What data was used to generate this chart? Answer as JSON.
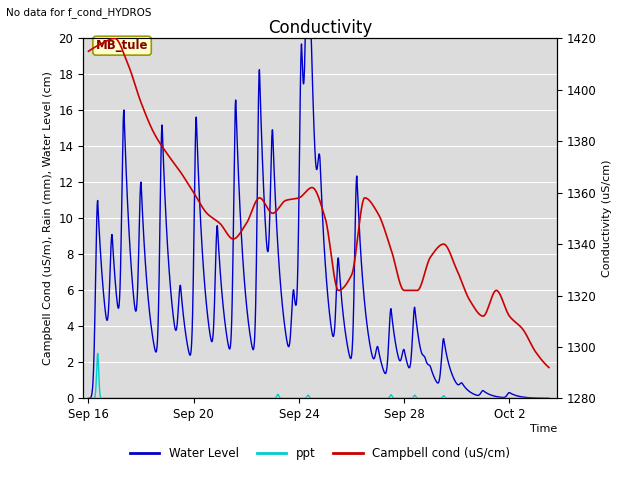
{
  "title": "Conductivity",
  "top_left_text": "No data for f_cond_HYDROS",
  "annotation_label": "MB_tule",
  "xlabel": "Time",
  "ylabel_left": "Campbell Cond (uS/m), Rain (mm), Water Level (cm)",
  "ylabel_right": "Conductivity (uS/cm)",
  "ylim_left": [
    0,
    20
  ],
  "ylim_right": [
    1280,
    1420
  ],
  "yticks_left": [
    0,
    2,
    4,
    6,
    8,
    10,
    12,
    14,
    16,
    18,
    20
  ],
  "yticks_right": [
    1280,
    1300,
    1320,
    1340,
    1360,
    1380,
    1400,
    1420
  ],
  "xtick_labels": [
    "Sep 16",
    "Sep 20",
    "Sep 24",
    "Sep 28",
    "Oct 2"
  ],
  "xtick_positions": [
    0,
    4,
    8,
    12,
    16
  ],
  "xlim": [
    -0.2,
    17.8
  ],
  "bg_color": "#dcdcdc",
  "plot_bg_color": "#dcdcdc",
  "water_level_color": "#0000cc",
  "ppt_color": "#00cccc",
  "campbell_cond_color": "#cc0000",
  "legend_entries": [
    "Water Level",
    "ppt",
    "Campbell cond (uS/cm)"
  ],
  "title_fontsize": 12,
  "label_fontsize": 8,
  "tick_fontsize": 8.5,
  "figsize": [
    6.4,
    4.8
  ],
  "dpi": 100
}
